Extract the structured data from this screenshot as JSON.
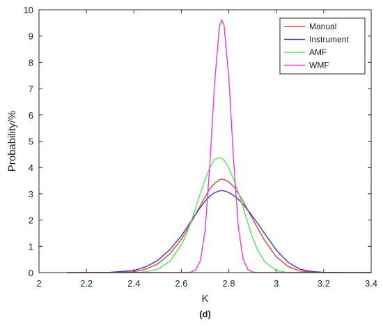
{
  "chart_data": {
    "type": "line",
    "xlabel": "K",
    "ylabel": "Probability/%",
    "caption": "(d)",
    "xlim": [
      2,
      3.4
    ],
    "ylim": [
      0,
      10
    ],
    "xticks": [
      2,
      2.2,
      2.4,
      2.6,
      2.8,
      3,
      3.2,
      3.4
    ],
    "xtick_labels": [
      "2",
      "2.2",
      "2.4",
      "2.6",
      "2.8",
      "3",
      "3.2",
      "3.4"
    ],
    "yticks": [
      0,
      1,
      2,
      3,
      4,
      5,
      6,
      7,
      8,
      9,
      10
    ],
    "ytick_labels": [
      "0",
      "1",
      "2",
      "3",
      "4",
      "5",
      "6",
      "7",
      "8",
      "9",
      "10"
    ],
    "grid": false,
    "legend_position": "top-right",
    "x": [
      2.12,
      2.2,
      2.3,
      2.4,
      2.45,
      2.5,
      2.55,
      2.6,
      2.62,
      2.64,
      2.66,
      2.68,
      2.7,
      2.72,
      2.74,
      2.76,
      2.77,
      2.78,
      2.8,
      2.82,
      2.84,
      2.86,
      2.88,
      2.9,
      2.92,
      2.95,
      3.0,
      3.05,
      3.1,
      3.15,
      3.2,
      3.3,
      3.4
    ],
    "series": [
      {
        "name": "Manual",
        "color": "#e8413c",
        "values": [
          0.0,
          0.0,
          0.0,
          0.03,
          0.13,
          0.33,
          0.7,
          1.27,
          1.57,
          1.89,
          2.22,
          2.55,
          2.88,
          3.19,
          3.4,
          3.53,
          3.56,
          3.54,
          3.45,
          3.28,
          3.02,
          2.71,
          2.38,
          2.04,
          1.71,
          1.24,
          0.6,
          0.23,
          0.06,
          0.02,
          0.0,
          0.0,
          0.0
        ]
      },
      {
        "name": "Instrument",
        "color": "#3b3bbf",
        "values": [
          0.0,
          0.0,
          0.01,
          0.08,
          0.22,
          0.46,
          0.86,
          1.4,
          1.67,
          1.95,
          2.22,
          2.48,
          2.72,
          2.91,
          3.04,
          3.11,
          3.12,
          3.11,
          3.05,
          2.94,
          2.79,
          2.6,
          2.38,
          2.14,
          1.89,
          1.5,
          0.86,
          0.39,
          0.13,
          0.04,
          0.01,
          0.0,
          0.0
        ]
      },
      {
        "name": "AMF",
        "color": "#5de05d",
        "values": [
          0.0,
          0.0,
          0.0,
          0.0,
          0.03,
          0.13,
          0.42,
          1.05,
          1.44,
          1.91,
          2.45,
          3.02,
          3.55,
          3.99,
          4.3,
          4.38,
          4.35,
          4.27,
          3.99,
          3.57,
          3.05,
          2.47,
          1.88,
          1.34,
          0.88,
          0.42,
          0.08,
          0.0,
          0.0,
          0.0,
          0.0,
          0.0,
          0.0
        ]
      },
      {
        "name": "WMF",
        "color": "#e33be3",
        "values": [
          0.0,
          0.0,
          0.0,
          0.0,
          0.0,
          0.0,
          0.0,
          0.0,
          0.0,
          0.02,
          0.1,
          0.45,
          1.6,
          4.1,
          7.2,
          9.35,
          9.62,
          9.4,
          7.4,
          4.3,
          1.75,
          0.52,
          0.12,
          0.02,
          0.0,
          0.0,
          0.0,
          0.0,
          0.0,
          0.0,
          0.0,
          0.0,
          0.0
        ]
      }
    ]
  }
}
